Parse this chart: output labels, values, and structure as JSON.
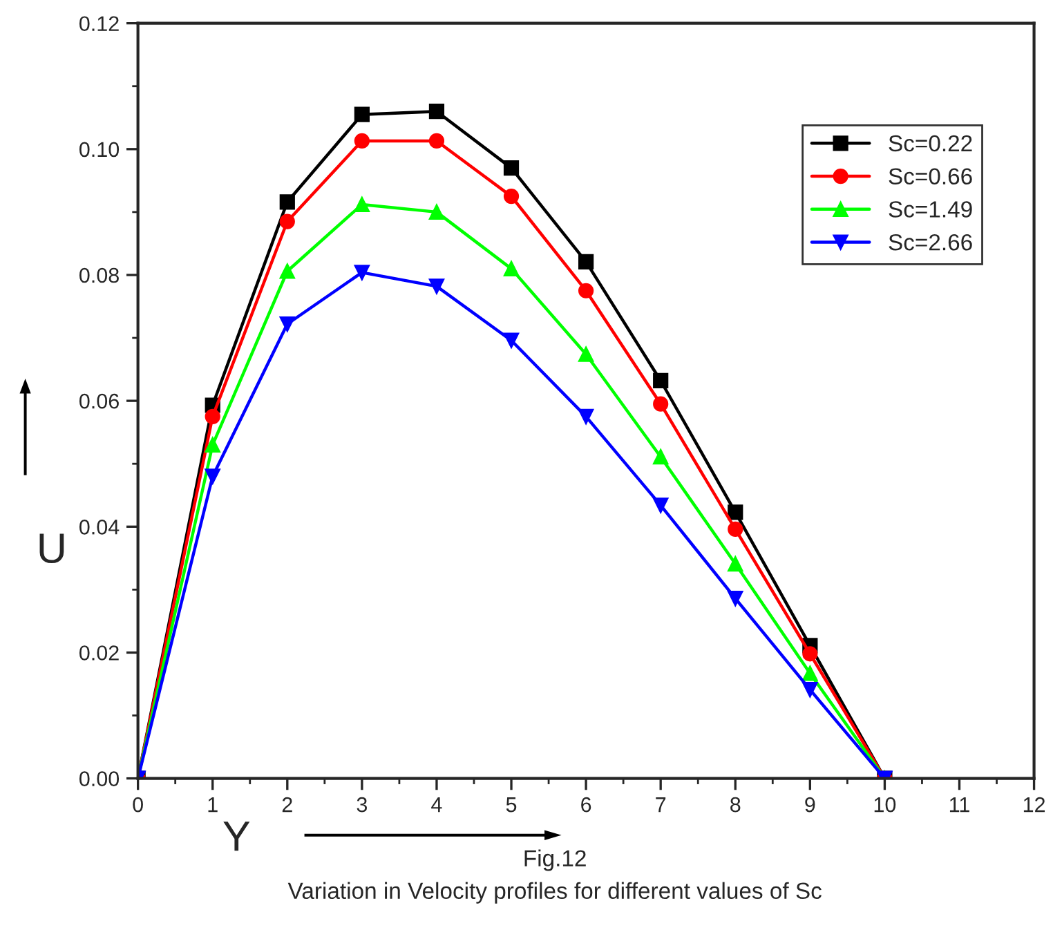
{
  "chart_data": {
    "type": "line",
    "xlabel": "Y",
    "ylabel": "U",
    "x": [
      0,
      1,
      2,
      3,
      4,
      5,
      6,
      7,
      8,
      9,
      10
    ],
    "series": [
      {
        "name": "Sc=0.22",
        "color": "#000000",
        "marker": "square",
        "values": [
          0,
          0.0593,
          0.0916,
          0.1055,
          0.106,
          0.097,
          0.0821,
          0.0632,
          0.0423,
          0.0211,
          0
        ]
      },
      {
        "name": "Sc=0.66",
        "color": "#ff0000",
        "marker": "circle",
        "values": [
          0,
          0.0575,
          0.0885,
          0.1013,
          0.1013,
          0.0925,
          0.0775,
          0.0595,
          0.0396,
          0.0198,
          0
        ]
      },
      {
        "name": "Sc=1.49",
        "color": "#00ff00",
        "marker": "triangle",
        "values": [
          0,
          0.053,
          0.0806,
          0.0912,
          0.09,
          0.081,
          0.0674,
          0.0511,
          0.0341,
          0.0167,
          0
        ]
      },
      {
        "name": "Sc=2.66",
        "color": "#0000ff",
        "marker": "triangle_down",
        "values": [
          0,
          0.048,
          0.0722,
          0.0804,
          0.0782,
          0.0696,
          0.0575,
          0.0434,
          0.0286,
          0.0141,
          0
        ]
      }
    ],
    "xlim": [
      0,
      12
    ],
    "xticks": [
      0,
      1,
      2,
      3,
      4,
      5,
      6,
      7,
      8,
      9,
      10,
      11,
      12
    ],
    "ylim": [
      0,
      0.12
    ],
    "yticks": [
      {
        "value": 0,
        "label": "0.00"
      },
      {
        "value": 0.02,
        "label": "0.02"
      },
      {
        "value": 0.04,
        "label": "0.04"
      },
      {
        "value": 0.06,
        "label": "0.06"
      },
      {
        "value": 0.08,
        "label": "0.08"
      },
      {
        "value": 0.1,
        "label": "0.10"
      },
      {
        "value": 0.12,
        "label": "0.12"
      }
    ],
    "grid": false,
    "legend": "top right",
    "line_style": "solid",
    "annotations": [
      "Fig.12",
      "Variation in Velocity profiles for different values of Sc"
    ]
  }
}
